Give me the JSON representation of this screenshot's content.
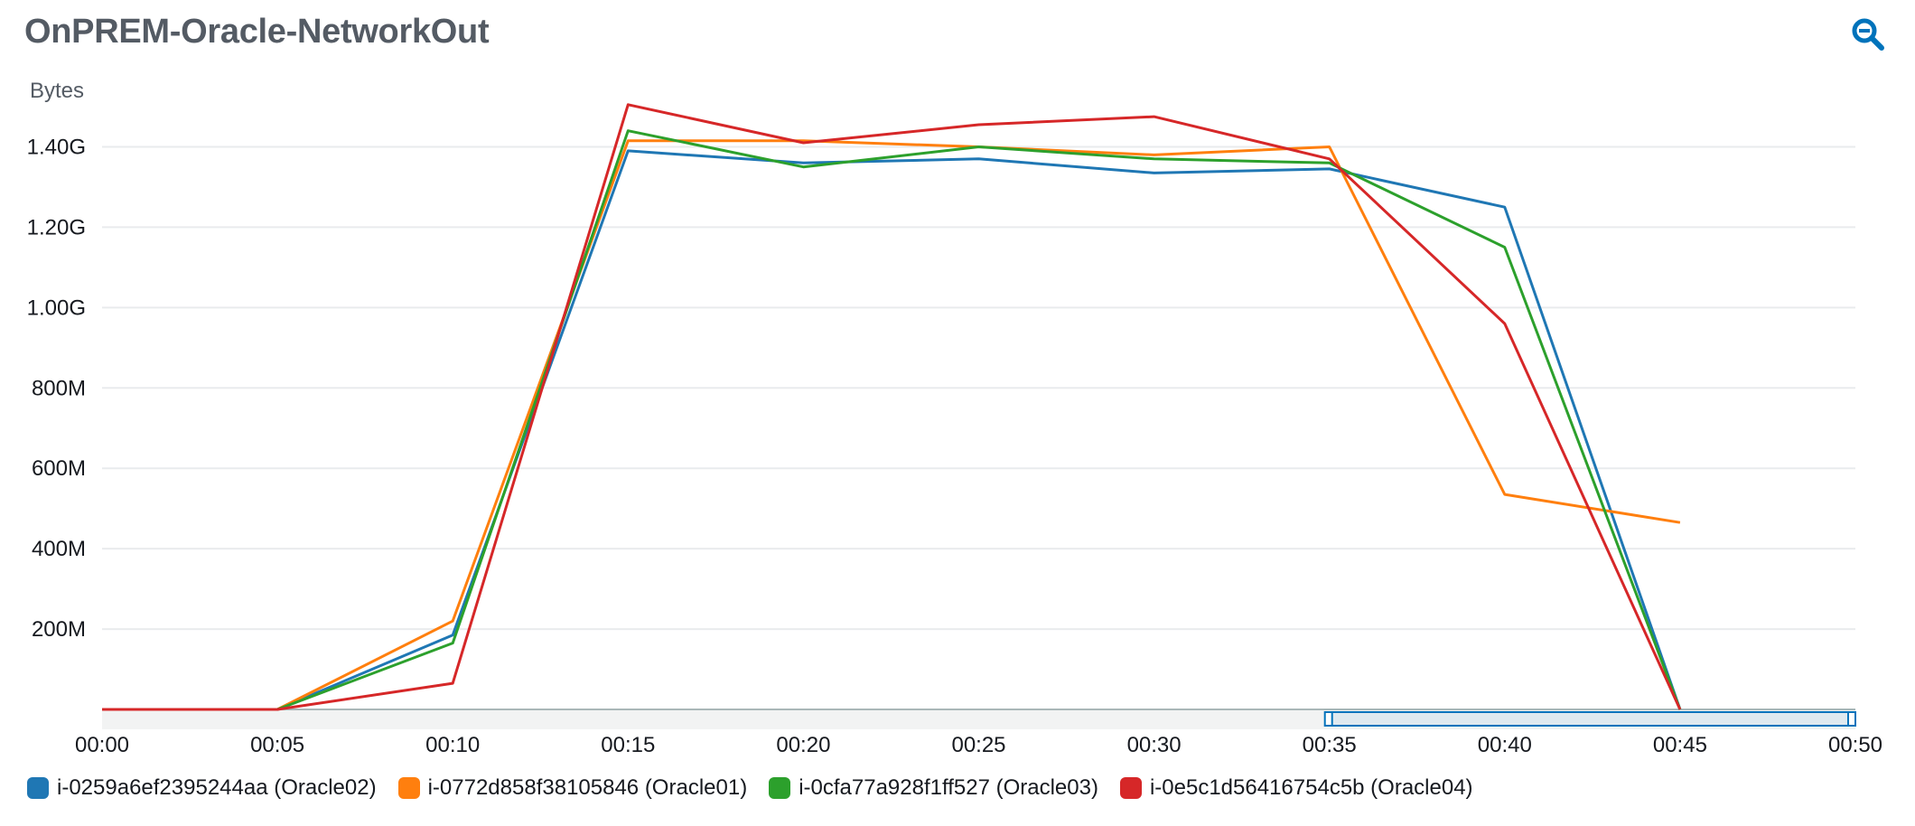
{
  "widget": {
    "title": "OnPREM-Oracle-NetworkOut",
    "zoom_icon": "zoom-out-magnifier-icon"
  },
  "colors": {
    "accent": "#0073bb",
    "grid": "#e9ebed",
    "axis_band": "#e9ebed"
  },
  "chart_data": {
    "type": "line",
    "ylabel": "Bytes",
    "x": [
      "00:00",
      "00:05",
      "00:10",
      "00:15",
      "00:20",
      "00:25",
      "00:30",
      "00:35",
      "00:40",
      "00:45",
      "00:50"
    ],
    "x_ticks": [
      "00:00",
      "00:05",
      "00:10",
      "00:15",
      "00:20",
      "00:25",
      "00:30",
      "00:35",
      "00:40",
      "00:45",
      "00:50"
    ],
    "y_ticks": [
      {
        "value": 200000000,
        "label": "200M"
      },
      {
        "value": 400000000,
        "label": "400M"
      },
      {
        "value": 600000000,
        "label": "600M"
      },
      {
        "value": 800000000,
        "label": "800M"
      },
      {
        "value": 1000000000,
        "label": "1.00G"
      },
      {
        "value": 1200000000,
        "label": "1.20G"
      },
      {
        "value": 1400000000,
        "label": "1.40G"
      }
    ],
    "ylim": [
      0,
      1500000000
    ],
    "grid": true,
    "legend_position": "bottom-left",
    "series": [
      {
        "name": "i-0259a6ef2395244aa (Oracle02)",
        "color": "#1f77b4",
        "values": [
          0,
          0,
          185000000,
          1390000000,
          1360000000,
          1370000000,
          1335000000,
          1345000000,
          1250000000,
          0,
          null
        ]
      },
      {
        "name": "i-0772d858f38105846 (Oracle01)",
        "color": "#ff7f0e",
        "values": [
          0,
          0,
          220000000,
          1415000000,
          1415000000,
          1400000000,
          1380000000,
          1400000000,
          535000000,
          465000000,
          null
        ]
      },
      {
        "name": "i-0cfa77a928f1ff527 (Oracle03)",
        "color": "#2ca02c",
        "values": [
          0,
          0,
          165000000,
          1440000000,
          1350000000,
          1400000000,
          1370000000,
          1360000000,
          1150000000,
          0,
          null
        ]
      },
      {
        "name": "i-0e5c1d56416754c5b (Oracle04)",
        "color": "#d62728",
        "values": [
          0,
          0,
          65000000,
          1505000000,
          1410000000,
          1455000000,
          1475000000,
          1370000000,
          960000000,
          0,
          null
        ]
      }
    ]
  }
}
